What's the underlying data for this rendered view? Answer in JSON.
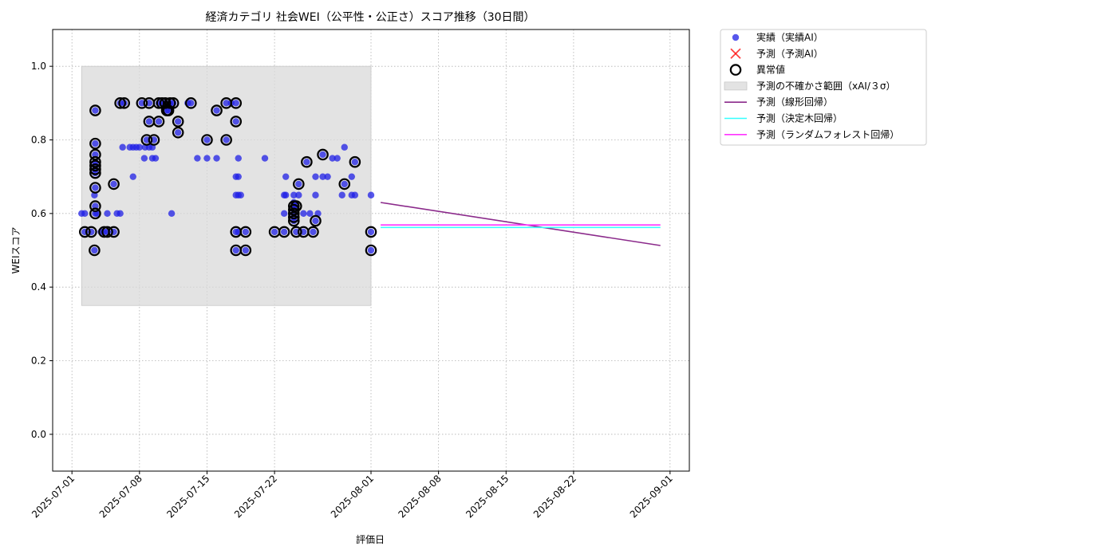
{
  "chart_data": {
    "type": "scatter",
    "title": "経済カテゴリ 社会WEI（公平性・公正さ）スコア推移（30日間）",
    "xlabel": "評価日",
    "ylabel": "WEIスコア",
    "x_ticks": [
      "2025-07-01",
      "2025-07-08",
      "2025-07-15",
      "2025-07-22",
      "2025-08-01",
      "2025-08-08",
      "2025-08-15",
      "2025-08-22",
      "2025-09-01"
    ],
    "y_ticks": [
      "0.0",
      "0.2",
      "0.4",
      "0.6",
      "0.8",
      "1.0"
    ],
    "xlim": [
      "2025-06-29",
      "2025-09-03"
    ],
    "ylim": [
      -0.1,
      1.1
    ],
    "grid": true,
    "legend_position": "outside-top-right",
    "colors": {
      "actual": "#1f1fe6",
      "forecast": "#ff0000",
      "anomaly": "#000000",
      "uncertainty": "#d9d9d9",
      "linear": "#8b2a8b",
      "tree": "#33ffff",
      "forest": "#ff33ff"
    },
    "legend": [
      {
        "key": "actual",
        "label": "実績（実績AI）"
      },
      {
        "key": "forecast",
        "label": "予測（予測AI）"
      },
      {
        "key": "anomaly",
        "label": "異常値"
      },
      {
        "key": "uncertainty",
        "label": "予測の不確かさ範囲（xAI/３σ）"
      },
      {
        "key": "linear",
        "label": "予測（線形回帰）"
      },
      {
        "key": "tree",
        "label": "予測（決定木回帰）"
      },
      {
        "key": "forest",
        "label": "予測（ランダムフォレスト回帰）"
      }
    ],
    "uncertainty_band": {
      "x_start": "2025-07-02",
      "x_end": "2025-08-01",
      "y_low": 0.35,
      "y_high": 1.0
    },
    "actual_points": [
      [
        "2025-07-02 00:00",
        0.6
      ],
      [
        "2025-07-02 08:00",
        0.55
      ],
      [
        "2025-07-02 08:00",
        0.6
      ],
      [
        "2025-07-03 00:00",
        0.55
      ],
      [
        "2025-07-03 08:00",
        0.5
      ],
      [
        "2025-07-03 08:00",
        0.65
      ],
      [
        "2025-07-03 10:00",
        0.88
      ],
      [
        "2025-07-03 10:00",
        0.79
      ],
      [
        "2025-07-03 10:00",
        0.76
      ],
      [
        "2025-07-03 10:00",
        0.74
      ],
      [
        "2025-07-03 10:00",
        0.73
      ],
      [
        "2025-07-03 10:00",
        0.72
      ],
      [
        "2025-07-03 10:00",
        0.71
      ],
      [
        "2025-07-03 10:00",
        0.67
      ],
      [
        "2025-07-03 10:00",
        0.62
      ],
      [
        "2025-07-03 10:00",
        0.6
      ],
      [
        "2025-07-03 14:00",
        0.6
      ],
      [
        "2025-07-04 00:00",
        0.55
      ],
      [
        "2025-07-04 08:00",
        0.55
      ],
      [
        "2025-07-04 16:00",
        0.55
      ],
      [
        "2025-07-04 16:00",
        0.6
      ],
      [
        "2025-07-05 08:00",
        0.55
      ],
      [
        "2025-07-05 08:00",
        0.68
      ],
      [
        "2025-07-05 16:00",
        0.6
      ],
      [
        "2025-07-06 00:00",
        0.6
      ],
      [
        "2025-07-06 00:00",
        0.9
      ],
      [
        "2025-07-06 06:00",
        0.78
      ],
      [
        "2025-07-06 10:00",
        0.9
      ],
      [
        "2025-07-07 00:00",
        0.78
      ],
      [
        "2025-07-07 08:00",
        0.78
      ],
      [
        "2025-07-07 08:00",
        0.7
      ],
      [
        "2025-07-07 16:00",
        0.78
      ],
      [
        "2025-07-08 00:00",
        0.78
      ],
      [
        "2025-07-08 06:00",
        0.9
      ],
      [
        "2025-07-08 12:00",
        0.75
      ],
      [
        "2025-07-08 14:00",
        0.78
      ],
      [
        "2025-07-08 18:00",
        0.8
      ],
      [
        "2025-07-09 00:00",
        0.78
      ],
      [
        "2025-07-09 00:00",
        0.85
      ],
      [
        "2025-07-09 00:00",
        0.9
      ],
      [
        "2025-07-09 08:00",
        0.75
      ],
      [
        "2025-07-09 08:00",
        0.78
      ],
      [
        "2025-07-09 12:00",
        0.8
      ],
      [
        "2025-07-09 16:00",
        0.75
      ],
      [
        "2025-07-10 00:00",
        0.85
      ],
      [
        "2025-07-10 00:00",
        0.9
      ],
      [
        "2025-07-10 08:00",
        0.9
      ],
      [
        "2025-07-10 16:00",
        0.9
      ],
      [
        "2025-07-10 20:00",
        0.88
      ],
      [
        "2025-07-11 00:00",
        0.88
      ],
      [
        "2025-07-11 04:00",
        0.9
      ],
      [
        "2025-07-11 08:00",
        0.6
      ],
      [
        "2025-07-11 12:00",
        0.9
      ],
      [
        "2025-07-12 00:00",
        0.85
      ],
      [
        "2025-07-12 00:00",
        0.82
      ],
      [
        "2025-07-13 00:00",
        0.9
      ],
      [
        "2025-07-13 08:00",
        0.9
      ],
      [
        "2025-07-14 00:00",
        0.75
      ],
      [
        "2025-07-15 00:00",
        0.8
      ],
      [
        "2025-07-15 00:00",
        0.75
      ],
      [
        "2025-07-16 00:00",
        0.88
      ],
      [
        "2025-07-16 00:00",
        0.75
      ],
      [
        "2025-07-17 00:00",
        0.8
      ],
      [
        "2025-07-17 00:00",
        0.9
      ],
      [
        "2025-07-17 12:00",
        0.9
      ],
      [
        "2025-07-18 00:00",
        0.85
      ],
      [
        "2025-07-18 00:00",
        0.9
      ],
      [
        "2025-07-18 00:00",
        0.7
      ],
      [
        "2025-07-18 00:00",
        0.65
      ],
      [
        "2025-07-18 00:00",
        0.55
      ],
      [
        "2025-07-18 00:00",
        0.5
      ],
      [
        "2025-07-18 06:00",
        0.75
      ],
      [
        "2025-07-18 06:00",
        0.7
      ],
      [
        "2025-07-18 06:00",
        0.65
      ],
      [
        "2025-07-18 06:00",
        0.55
      ],
      [
        "2025-07-18 12:00",
        0.65
      ],
      [
        "2025-07-19 00:00",
        0.55
      ],
      [
        "2025-07-19 00:00",
        0.5
      ],
      [
        "2025-07-21 00:00",
        0.75
      ],
      [
        "2025-07-22 00:00",
        0.55
      ],
      [
        "2025-07-23 00:00",
        0.55
      ],
      [
        "2025-07-23 00:00",
        0.6
      ],
      [
        "2025-07-23 00:00",
        0.65
      ],
      [
        "2025-07-23 04:00",
        0.7
      ],
      [
        "2025-07-23 04:00",
        0.65
      ],
      [
        "2025-07-24 00:00",
        0.65
      ],
      [
        "2025-07-24 00:00",
        0.63
      ],
      [
        "2025-07-24 00:00",
        0.62
      ],
      [
        "2025-07-24 00:00",
        0.61
      ],
      [
        "2025-07-24 00:00",
        0.6
      ],
      [
        "2025-07-24 00:00",
        0.59
      ],
      [
        "2025-07-24 00:00",
        0.58
      ],
      [
        "2025-07-24 06:00",
        0.62
      ],
      [
        "2025-07-24 06:00",
        0.55
      ],
      [
        "2025-07-24 12:00",
        0.65
      ],
      [
        "2025-07-24 12:00",
        0.68
      ],
      [
        "2025-07-25 00:00",
        0.6
      ],
      [
        "2025-07-25 00:00",
        0.55
      ],
      [
        "2025-07-25 08:00",
        0.74
      ],
      [
        "2025-07-25 16:00",
        0.6
      ],
      [
        "2025-07-26 00:00",
        0.55
      ],
      [
        "2025-07-26 06:00",
        0.7
      ],
      [
        "2025-07-26 06:00",
        0.65
      ],
      [
        "2025-07-26 06:00",
        0.58
      ],
      [
        "2025-07-26 12:00",
        0.6
      ],
      [
        "2025-07-27 00:00",
        0.76
      ],
      [
        "2025-07-27 00:00",
        0.7
      ],
      [
        "2025-07-27 12:00",
        0.7
      ],
      [
        "2025-07-28 00:00",
        0.75
      ],
      [
        "2025-07-28 12:00",
        0.75
      ],
      [
        "2025-07-29 00:00",
        0.65
      ],
      [
        "2025-07-29 06:00",
        0.68
      ],
      [
        "2025-07-29 06:00",
        0.78
      ],
      [
        "2025-07-30 00:00",
        0.65
      ],
      [
        "2025-07-30 00:00",
        0.7
      ],
      [
        "2025-07-30 08:00",
        0.74
      ],
      [
        "2025-07-30 08:00",
        0.65
      ],
      [
        "2025-08-01 00:00",
        0.65
      ],
      [
        "2025-08-01 00:00",
        0.55
      ],
      [
        "2025-08-01 00:00",
        0.5
      ]
    ],
    "anomaly_points": [
      [
        "2025-07-02 08:00",
        0.55
      ],
      [
        "2025-07-03 00:00",
        0.55
      ],
      [
        "2025-07-03 08:00",
        0.5
      ],
      [
        "2025-07-03 10:00",
        0.88
      ],
      [
        "2025-07-03 10:00",
        0.79
      ],
      [
        "2025-07-03 10:00",
        0.76
      ],
      [
        "2025-07-03 10:00",
        0.74
      ],
      [
        "2025-07-03 10:00",
        0.73
      ],
      [
        "2025-07-03 10:00",
        0.72
      ],
      [
        "2025-07-03 10:00",
        0.71
      ],
      [
        "2025-07-03 10:00",
        0.67
      ],
      [
        "2025-07-03 10:00",
        0.62
      ],
      [
        "2025-07-03 10:00",
        0.6
      ],
      [
        "2025-07-04 08:00",
        0.55
      ],
      [
        "2025-07-04 16:00",
        0.55
      ],
      [
        "2025-07-05 08:00",
        0.55
      ],
      [
        "2025-07-05 08:00",
        0.68
      ],
      [
        "2025-07-06 00:00",
        0.9
      ],
      [
        "2025-07-06 10:00",
        0.9
      ],
      [
        "2025-07-08 06:00",
        0.9
      ],
      [
        "2025-07-08 18:00",
        0.8
      ],
      [
        "2025-07-09 00:00",
        0.85
      ],
      [
        "2025-07-09 00:00",
        0.9
      ],
      [
        "2025-07-09 12:00",
        0.8
      ],
      [
        "2025-07-10 00:00",
        0.85
      ],
      [
        "2025-07-10 00:00",
        0.9
      ],
      [
        "2025-07-10 08:00",
        0.9
      ],
      [
        "2025-07-10 16:00",
        0.9
      ],
      [
        "2025-07-10 20:00",
        0.88
      ],
      [
        "2025-07-11 00:00",
        0.88
      ],
      [
        "2025-07-11 04:00",
        0.9
      ],
      [
        "2025-07-11 12:00",
        0.9
      ],
      [
        "2025-07-12 00:00",
        0.85
      ],
      [
        "2025-07-12 00:00",
        0.82
      ],
      [
        "2025-07-13 08:00",
        0.9
      ],
      [
        "2025-07-15 00:00",
        0.8
      ],
      [
        "2025-07-16 00:00",
        0.88
      ],
      [
        "2025-07-17 00:00",
        0.8
      ],
      [
        "2025-07-17 00:00",
        0.9
      ],
      [
        "2025-07-18 00:00",
        0.85
      ],
      [
        "2025-07-18 00:00",
        0.9
      ],
      [
        "2025-07-18 00:00",
        0.55
      ],
      [
        "2025-07-18 00:00",
        0.5
      ],
      [
        "2025-07-19 00:00",
        0.55
      ],
      [
        "2025-07-19 00:00",
        0.5
      ],
      [
        "2025-07-22 00:00",
        0.55
      ],
      [
        "2025-07-23 00:00",
        0.55
      ],
      [
        "2025-07-24 00:00",
        0.62
      ],
      [
        "2025-07-24 00:00",
        0.61
      ],
      [
        "2025-07-24 00:00",
        0.6
      ],
      [
        "2025-07-24 00:00",
        0.59
      ],
      [
        "2025-07-24 00:00",
        0.58
      ],
      [
        "2025-07-24 06:00",
        0.62
      ],
      [
        "2025-07-24 06:00",
        0.55
      ],
      [
        "2025-07-24 12:00",
        0.68
      ],
      [
        "2025-07-25 00:00",
        0.55
      ],
      [
        "2025-07-25 08:00",
        0.74
      ],
      [
        "2025-07-26 00:00",
        0.55
      ],
      [
        "2025-07-26 06:00",
        0.58
      ],
      [
        "2025-07-27 00:00",
        0.76
      ],
      [
        "2025-07-29 06:00",
        0.68
      ],
      [
        "2025-07-30 08:00",
        0.74
      ],
      [
        "2025-08-01 00:00",
        0.55
      ],
      [
        "2025-08-01 00:00",
        0.5
      ]
    ],
    "series": [
      {
        "key": "linear",
        "x": [
          "2025-08-02",
          "2025-08-31"
        ],
        "y": [
          0.63,
          0.513
        ]
      },
      {
        "key": "tree",
        "x": [
          "2025-08-02",
          "2025-08-31"
        ],
        "y": [
          0.562,
          0.562
        ]
      },
      {
        "key": "forest",
        "x": [
          "2025-08-02",
          "2025-08-31"
        ],
        "y": [
          0.569,
          0.569
        ]
      }
    ]
  }
}
